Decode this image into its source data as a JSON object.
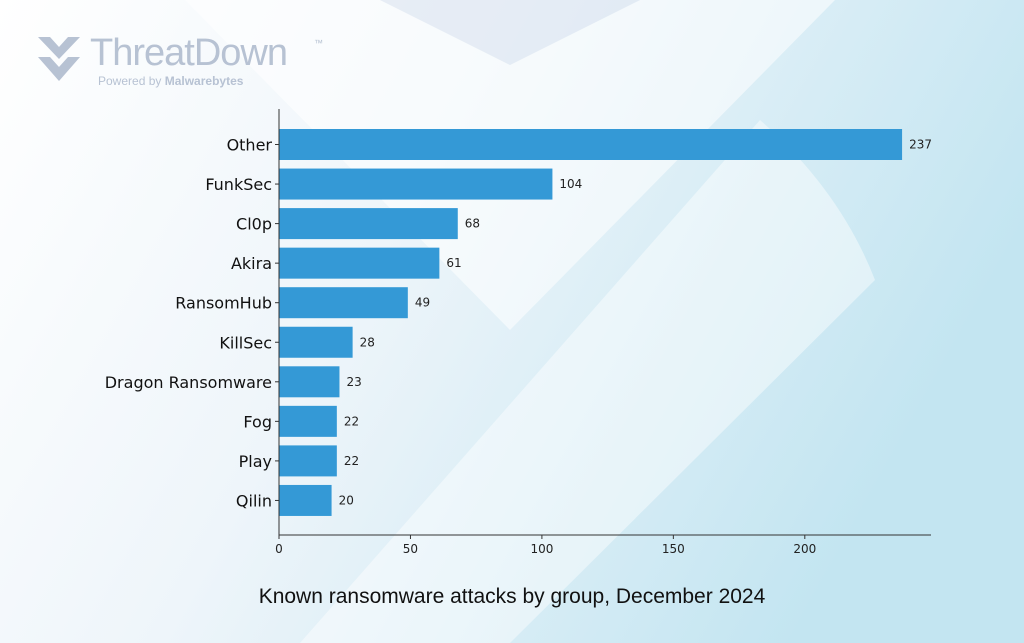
{
  "brand": {
    "name": "ThreatDown",
    "trademark": "™",
    "tagline_prefix": "Powered by",
    "tagline_brand": "Malwarebytes"
  },
  "colors": {
    "bar": "#3499d6",
    "axis": "#333333",
    "bg_left": "#ffffff",
    "bg_right": "#c5e6f2"
  },
  "chart_data": {
    "type": "bar",
    "orientation": "horizontal",
    "title": "Known ransomware attacks by group, December 2024",
    "xlabel": "",
    "ylabel": "",
    "categories": [
      "Other",
      "FunkSec",
      "Cl0p",
      "Akira",
      "RansomHub",
      "KillSec",
      "Dragon Ransomware",
      "Fog",
      "Play",
      "Qilin"
    ],
    "values": [
      237,
      104,
      68,
      61,
      49,
      28,
      23,
      22,
      22,
      20
    ],
    "xlim": [
      0,
      248
    ],
    "xticks": [
      0,
      50,
      100,
      150,
      200
    ],
    "grid": false,
    "data_labels": true
  }
}
